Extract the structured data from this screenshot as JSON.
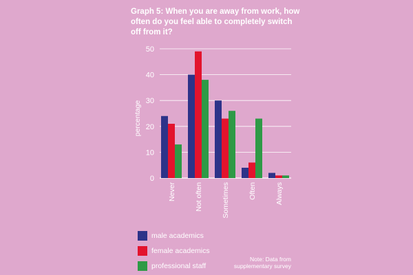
{
  "chart_data": {
    "type": "bar",
    "title": "Graph 5: When you are away from work, how often do you feel able to completely switch off from it?",
    "ylabel": "percentage",
    "xlabel": "",
    "ylim": [
      0,
      50
    ],
    "yticks": [
      "0",
      "10",
      "20",
      "30",
      "40",
      "50"
    ],
    "grid": true,
    "legend_position": "bottom-left",
    "categories": [
      "Never",
      "Not often",
      "Sometimes",
      "Often",
      "Always"
    ],
    "series": [
      {
        "name": "male academics",
        "color": "#2d3389",
        "values": [
          24,
          40,
          30,
          4,
          2
        ]
      },
      {
        "name": "female academics",
        "color": "#e3132d",
        "values": [
          21,
          49,
          23,
          6,
          1
        ]
      },
      {
        "name": "professional staff",
        "color": "#2e9a46",
        "values": [
          13,
          38,
          26,
          23,
          1
        ]
      }
    ]
  },
  "note": "Note: Data from supplementary survey"
}
